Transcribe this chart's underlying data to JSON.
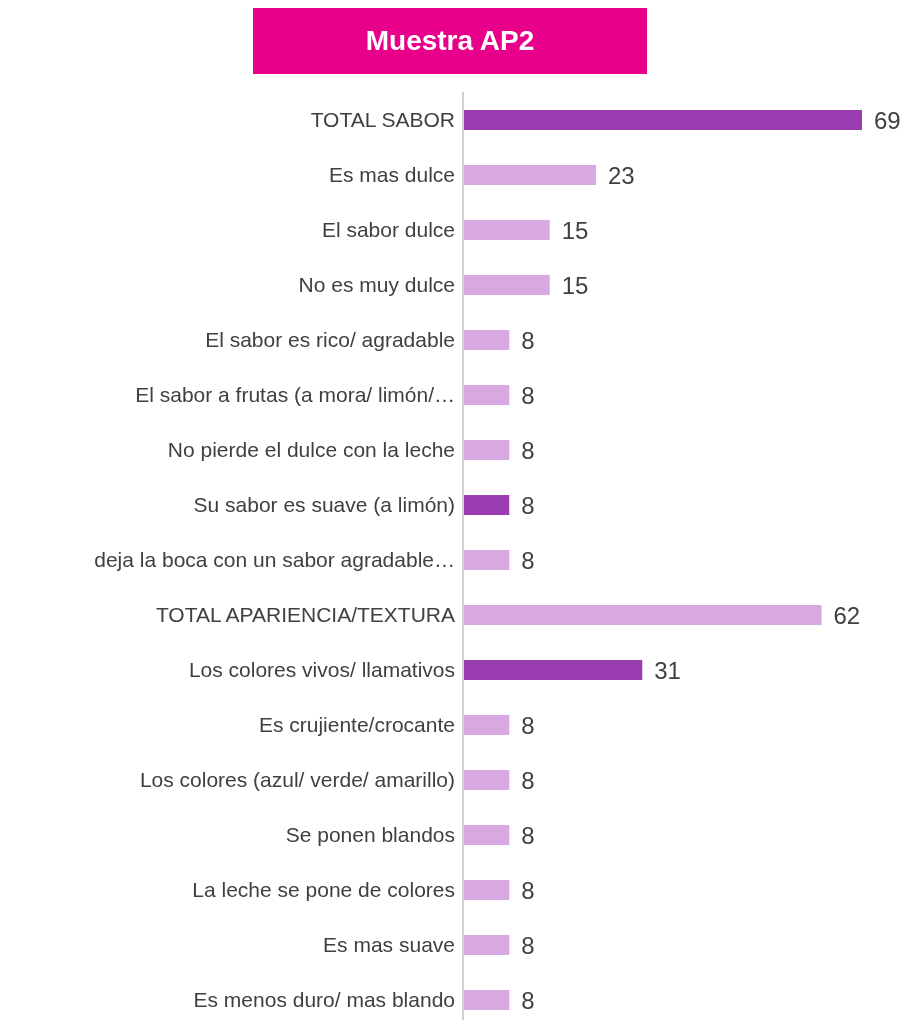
{
  "chart_data": {
    "type": "bar",
    "orientation": "horizontal",
    "title": "Muestra AP2",
    "categories": [
      "TOTAL SABOR",
      "Es mas dulce",
      "El sabor dulce",
      "No es muy dulce",
      "El sabor es rico/ agradable",
      "El sabor a frutas (a mora/ limón/…",
      "No pierde el dulce con la leche",
      "Su sabor es suave (a limón)",
      "deja la boca con un sabor agradable…",
      "TOTAL APARIENCIA/TEXTURA",
      "Los colores vivos/ llamativos",
      "Es crujiente/crocante",
      "Los colores (azul/ verde/ amarillo)",
      "Se ponen blandos",
      "La leche se pone de colores",
      "Es mas suave",
      "Es menos duro/ mas blando"
    ],
    "values": [
      69,
      23,
      15,
      15,
      8,
      8,
      8,
      8,
      8,
      62,
      31,
      8,
      8,
      8,
      8,
      8,
      8
    ],
    "colors": [
      "#9a3db0",
      "#d7a8e1",
      "#d7a8e1",
      "#d7a8e1",
      "#d7a8e1",
      "#d7a8e1",
      "#d7a8e1",
      "#9a3db0",
      "#d7a8e1",
      "#d7a8e1",
      "#9a3db0",
      "#d7a8e1",
      "#d7a8e1",
      "#d7a8e1",
      "#d7a8e1",
      "#d7a8e1",
      "#d7a8e1"
    ],
    "data_labels": true,
    "grid": false,
    "legend": false
  }
}
